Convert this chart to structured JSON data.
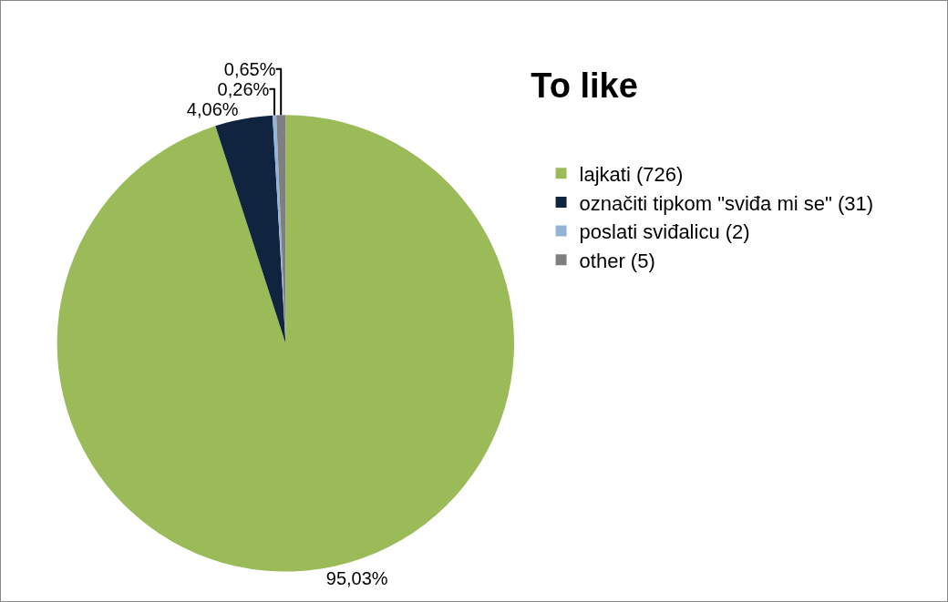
{
  "chart_data": {
    "type": "pie",
    "title": "To like",
    "categories": [
      "lajkati (726)",
      "označiti tipkom \"sviđa mi se\" (31)",
      "poslati sviđalicu (2)",
      "other (5)"
    ],
    "values": [
      95.03,
      4.06,
      0.26,
      0.65
    ],
    "value_labels": [
      "95,03%",
      "4,06%",
      "0,26%",
      "0,65%"
    ],
    "colors": [
      "#9bbb59",
      "#10243f",
      "#95b3d7",
      "#7f7f7f"
    ],
    "legend": "right"
  }
}
